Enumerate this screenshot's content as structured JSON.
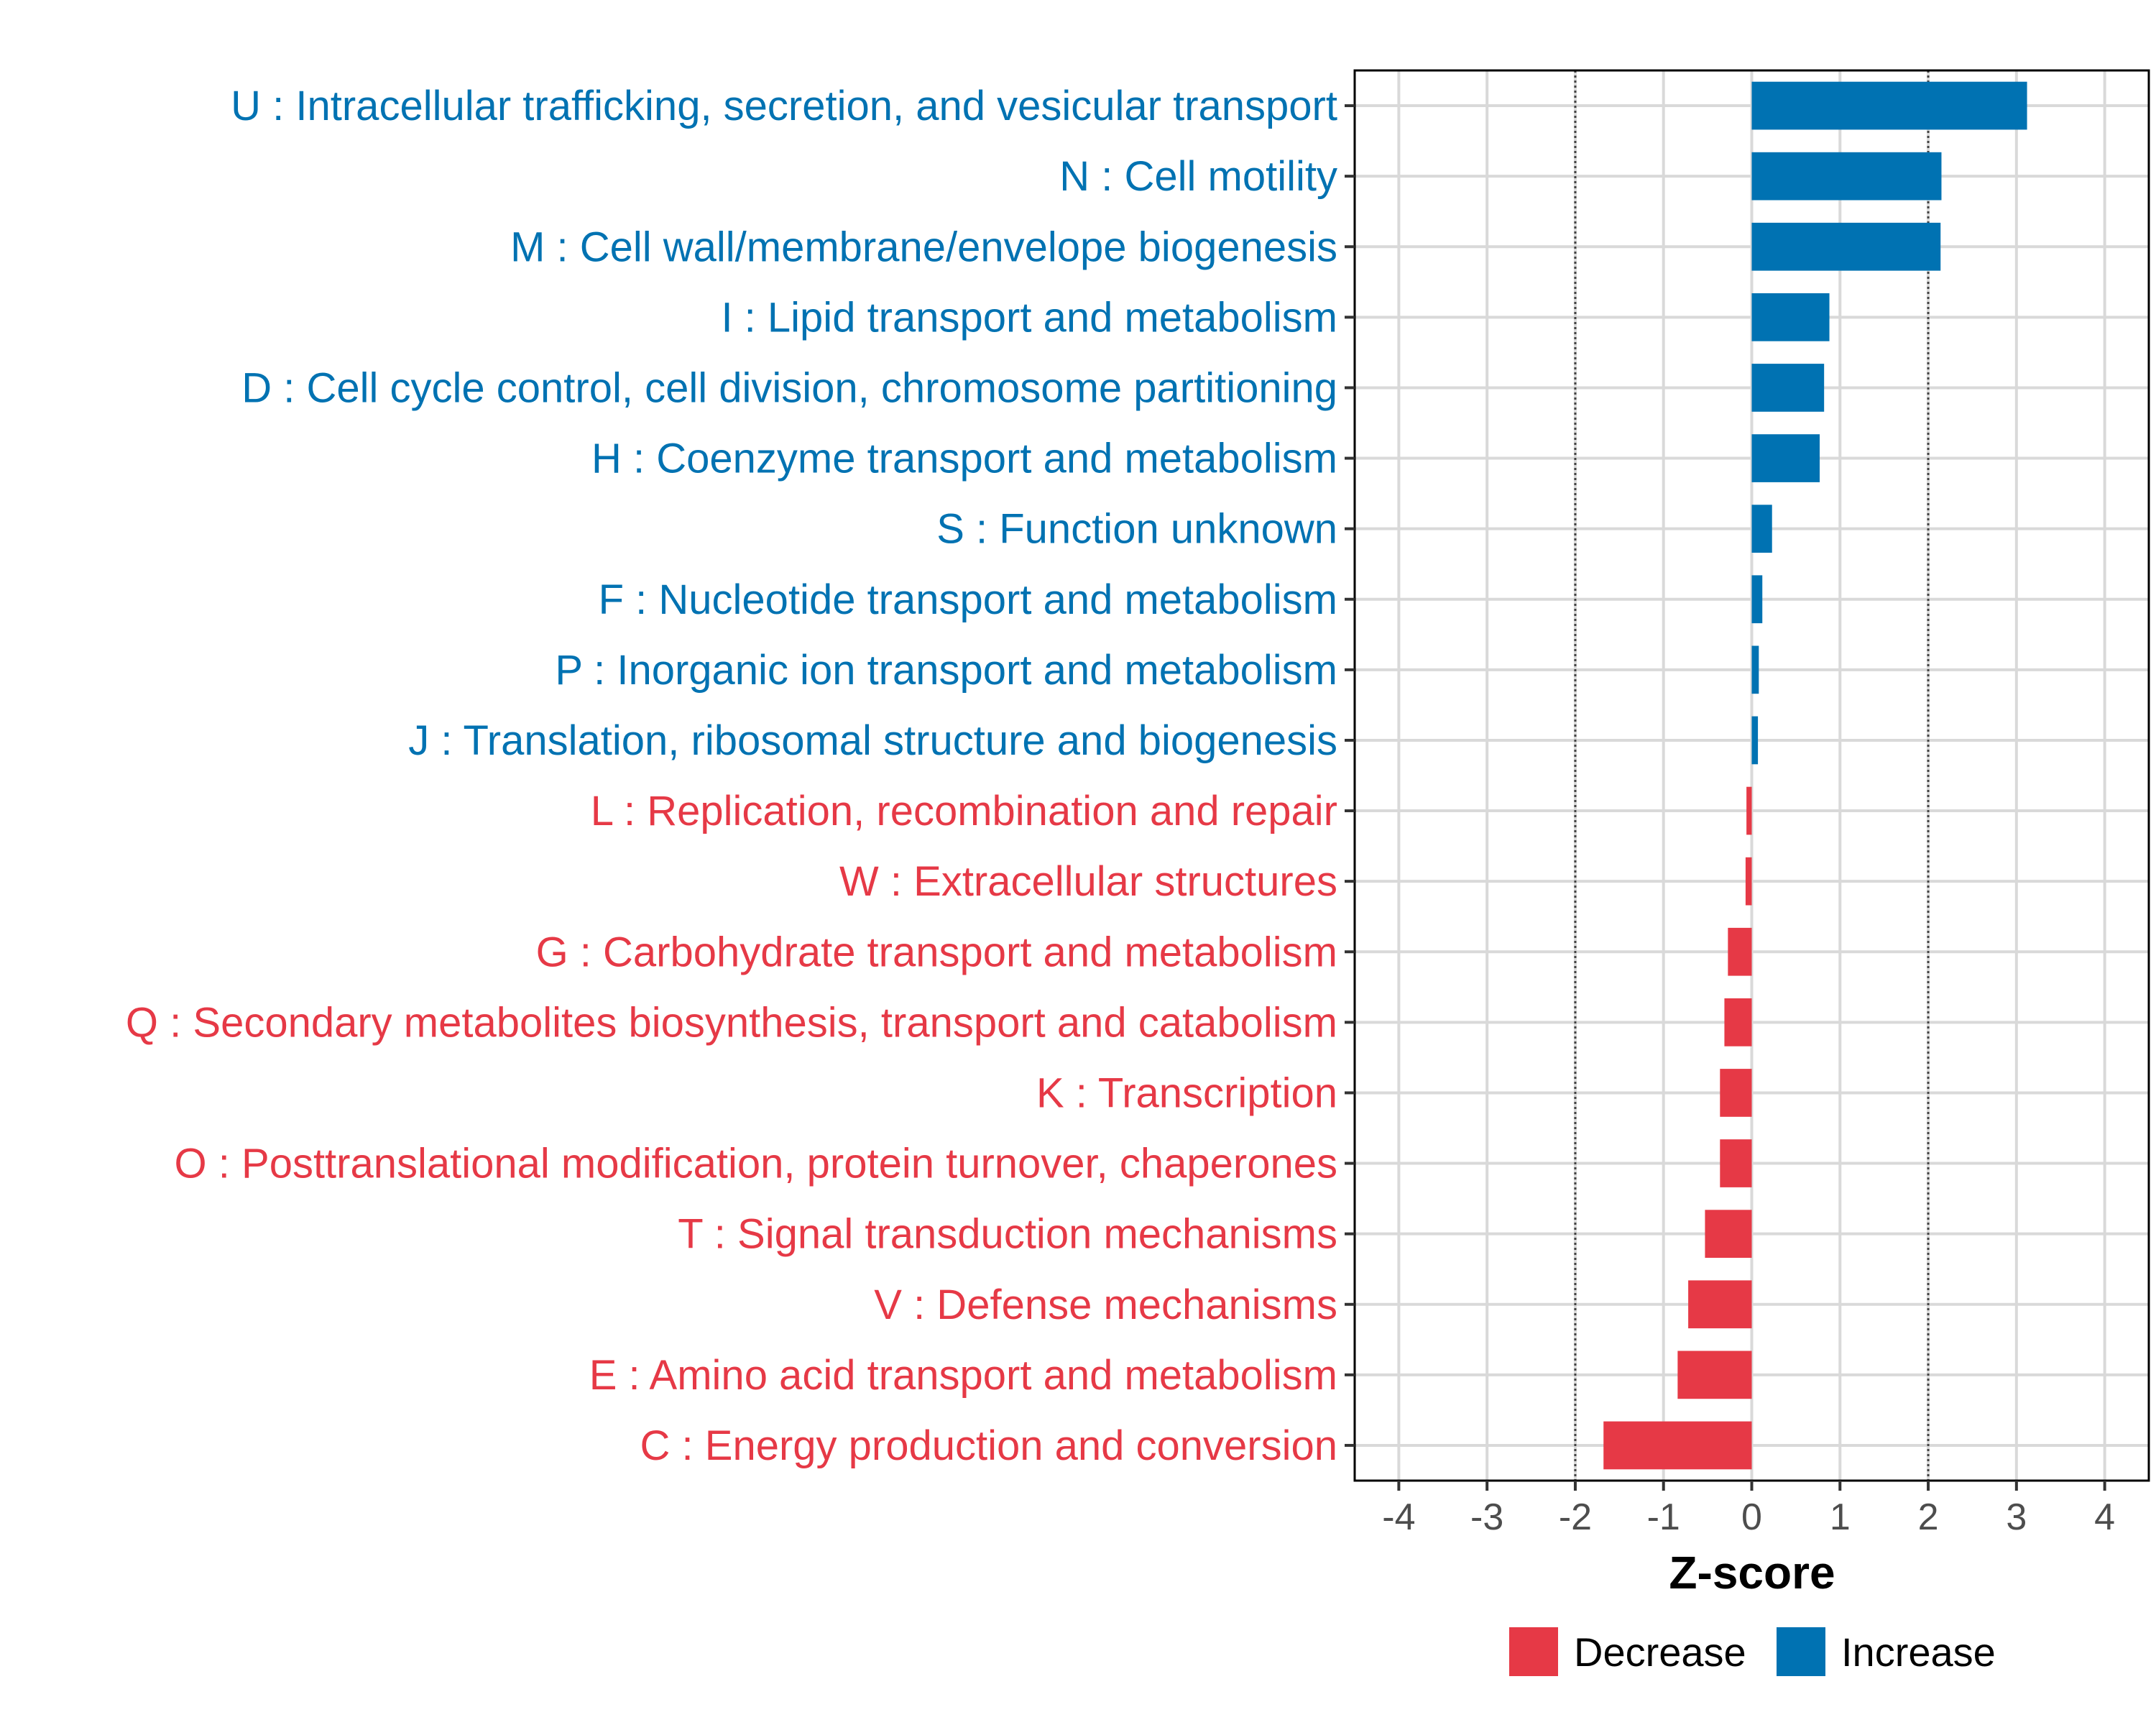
{
  "chart_data": {
    "type": "bar",
    "orientation": "horizontal",
    "xlabel": "Z-score",
    "ylabel": "",
    "xlim": [
      -4.5,
      4.5
    ],
    "x_ticks": [
      "-4",
      "-3",
      "-2",
      "-1",
      "0",
      "1",
      "2",
      "3",
      "4"
    ],
    "threshold_lines": [
      -2,
      2
    ],
    "grid": true,
    "legend_position": "bottom",
    "legend": [
      {
        "label": "Decrease",
        "color": "#E63946"
      },
      {
        "label": "Increase",
        "color": "#0072B2"
      }
    ],
    "categories": [
      "U : Intracellular trafficking, secretion, and vesicular transport",
      "N : Cell motility",
      "M : Cell wall/membrane/envelope biogenesis",
      "I : Lipid transport and metabolism",
      "D : Cell cycle control, cell division, chromosome partitioning",
      "H : Coenzyme transport and metabolism",
      "S : Function unknown",
      "F : Nucleotide transport and metabolism",
      "P : Inorganic ion transport and metabolism",
      "J : Translation, ribosomal structure and biogenesis",
      "L : Replication, recombination and repair",
      "W : Extracellular structures",
      "G : Carbohydrate transport and metabolism",
      "Q : Secondary metabolites biosynthesis, transport and catabolism",
      "K : Transcription",
      "O : Posttranslational modification, protein turnover, chaperones",
      "T : Signal transduction mechanisms",
      "V : Defense mechanisms",
      "E : Amino acid transport and metabolism",
      "C : Energy production and conversion"
    ],
    "values": [
      3.12,
      2.15,
      2.14,
      0.88,
      0.82,
      0.77,
      0.23,
      0.12,
      0.08,
      0.07,
      -0.06,
      -0.07,
      -0.27,
      -0.31,
      -0.36,
      -0.36,
      -0.53,
      -0.72,
      -0.84,
      -1.68
    ],
    "series_for_values": [
      "Increase",
      "Increase",
      "Increase",
      "Increase",
      "Increase",
      "Increase",
      "Increase",
      "Increase",
      "Increase",
      "Increase",
      "Decrease",
      "Decrease",
      "Decrease",
      "Decrease",
      "Decrease",
      "Decrease",
      "Decrease",
      "Decrease",
      "Decrease",
      "Decrease"
    ]
  }
}
